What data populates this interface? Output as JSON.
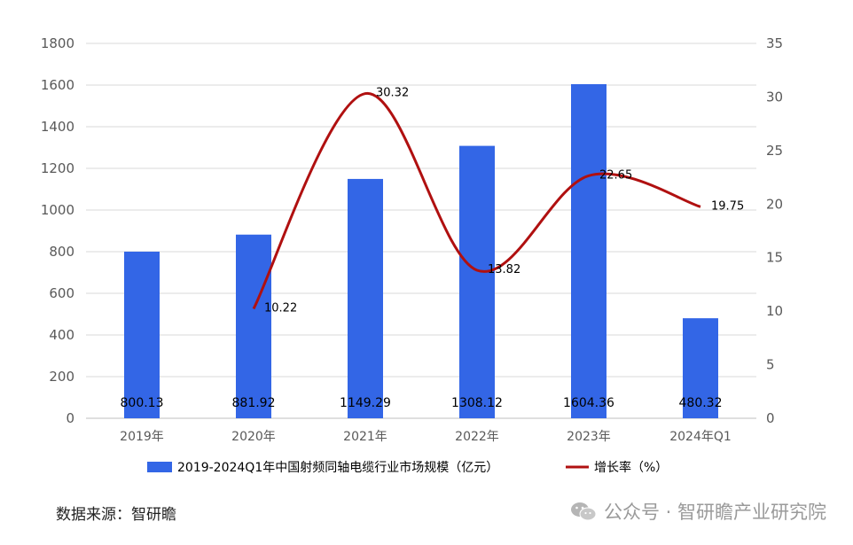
{
  "chart_data": {
    "type": "bar",
    "categories": [
      "2019年",
      "2020年",
      "2021年",
      "2022年",
      "2023年",
      "2024年Q1"
    ],
    "series": [
      {
        "name": "2019-2024Q1年中国射频同轴电缆行业市场规模（亿元）",
        "type": "bar",
        "axis": "left",
        "values": [
          800.13,
          881.92,
          1149.29,
          1308.12,
          1604.36,
          480.32
        ],
        "labels": [
          "800.13",
          "881.92",
          "1149.29",
          "1308.12",
          "1604.36",
          "480.32"
        ]
      },
      {
        "name": "增长率（%）",
        "type": "line",
        "axis": "right",
        "values": [
          null,
          10.22,
          30.32,
          13.82,
          22.65,
          19.75
        ],
        "labels": [
          "",
          "10.22",
          "30.32",
          "13.82",
          "22.65",
          "19.75"
        ]
      }
    ],
    "y_left": {
      "min": 0,
      "max": 1800,
      "ticks": [
        "0",
        "200",
        "400",
        "600",
        "800",
        "1000",
        "1200",
        "1400",
        "1600",
        "1800"
      ]
    },
    "y_right": {
      "min": 0,
      "max": 35,
      "ticks": [
        "0",
        "5",
        "10",
        "15",
        "20",
        "25",
        "30",
        "35"
      ]
    },
    "grid": true,
    "legend": "bottom",
    "colors": {
      "bar": "#3366e6",
      "line": "#b01010",
      "grid": "#d9d9d9"
    }
  },
  "footer": {
    "source": "数据来源：智研瞻",
    "watermark": "公众号 · 智研瞻产业研究院"
  }
}
